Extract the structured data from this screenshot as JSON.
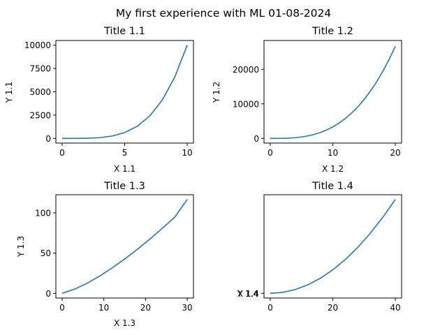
{
  "figure": {
    "suptitle": "My first experience with ML 01-08-2024"
  },
  "chart_data": [
    {
      "type": "line",
      "title": "Title 1.1",
      "xlabel": "X 1.1",
      "ylabel": "Y 1.1",
      "xlim": [
        -0.5,
        10.5
      ],
      "ylim": [
        -500,
        10500
      ],
      "xticks": [
        0,
        5,
        10
      ],
      "xtick_labels": [
        "0",
        "5",
        "10"
      ],
      "yticks": [
        0,
        2500,
        5000,
        7500,
        10000
      ],
      "ytick_labels": [
        "0",
        "2500",
        "5000",
        "7500",
        "10000"
      ],
      "x": [
        0,
        1,
        2,
        3,
        4,
        5,
        6,
        7,
        8,
        9,
        10
      ],
      "series": [
        {
          "color": "#1f77b4",
          "values": [
            0,
            1,
            16,
            81,
            256,
            625,
            1296,
            2401,
            4096,
            6561,
            10000
          ]
        }
      ]
    },
    {
      "type": "line",
      "title": "Title 1.2",
      "xlabel": "X 1.2",
      "ylabel": "Y 1.2",
      "xlim": [
        -1,
        21
      ],
      "ylim": [
        -1350,
        28350
      ],
      "xticks": [
        0,
        10,
        20
      ],
      "xtick_labels": [
        "0",
        "10",
        "20"
      ],
      "yticks": [
        0,
        10000,
        20000
      ],
      "ytick_labels": [
        "0",
        "10000",
        "20000"
      ],
      "x": [
        0,
        1,
        2,
        3,
        4,
        5,
        6,
        7,
        8,
        9,
        10,
        11,
        12,
        13,
        14,
        15,
        16,
        17,
        18,
        19,
        20
      ],
      "series": [
        {
          "color": "#1f77b4",
          "values": [
            0,
            3.3,
            26.7,
            90,
            213,
            417,
            720,
            1143,
            1707,
            2430,
            3333,
            4437,
            5760,
            7323,
            9147,
            11250,
            13653,
            16377,
            19440,
            22863,
            26667
          ]
        }
      ]
    },
    {
      "type": "line",
      "title": "Title 1.3",
      "xlabel": "X 1.3",
      "ylabel": "Y 1.3",
      "xlim": [
        -1.5,
        31.5
      ],
      "ylim": [
        -5.8,
        122.5
      ],
      "xticks": [
        0,
        10,
        20,
        30
      ],
      "xtick_labels": [
        "0",
        "10",
        "20",
        "30"
      ],
      "yticks": [
        0,
        50,
        100
      ],
      "ytick_labels": [
        "0",
        "50",
        "100"
      ],
      "x": [
        0,
        3,
        6,
        9,
        12,
        15,
        18,
        21,
        24,
        27,
        30
      ],
      "series": [
        {
          "color": "#1f77b4",
          "values": [
            0,
            5.2,
            12.5,
            21.5,
            31.6,
            42.6,
            54.6,
            67.2,
            80.6,
            94.6,
            116.7
          ]
        }
      ]
    },
    {
      "type": "line",
      "title": "Title 1.4",
      "xlabel": "",
      "ylabel": "",
      "xlim": [
        -2,
        42
      ],
      "ylim": [
        -7.5,
        157.5
      ],
      "xticks": [
        0,
        20,
        40
      ],
      "xtick_labels": [
        "0",
        "20",
        "40"
      ],
      "yticks": [
        0
      ],
      "ytick_labels": [
        "X 1.4"
      ],
      "overlap_ytick_labels": [
        "Y 1.4"
      ],
      "x": [
        0,
        4,
        8,
        12,
        16,
        20,
        24,
        28,
        32,
        36,
        40
      ],
      "series": [
        {
          "color": "#1f77b4",
          "values": [
            0,
            1.5,
            6,
            13.5,
            24,
            37.5,
            54,
            73.5,
            96,
            121.5,
            150
          ]
        }
      ]
    }
  ]
}
